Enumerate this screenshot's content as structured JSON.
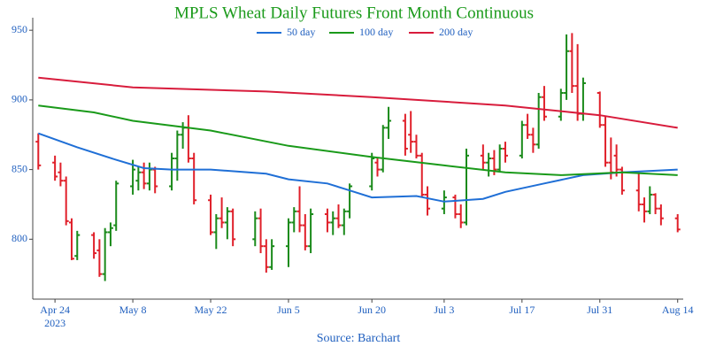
{
  "chart_data": {
    "type": "ohlc",
    "title": "MPLS Wheat Daily Futures Front Month Continuous",
    "source": "Source: Barchart",
    "up_color": "#1a8a1a",
    "down_color": "#e0202a",
    "x": [
      "2023-04-21",
      "2023-04-24",
      "2023-04-25",
      "2023-04-26",
      "2023-04-27",
      "2023-04-28",
      "2023-05-01",
      "2023-05-02",
      "2023-05-03",
      "2023-05-04",
      "2023-05-05",
      "2023-05-08",
      "2023-05-09",
      "2023-05-10",
      "2023-05-11",
      "2023-05-12",
      "2023-05-15",
      "2023-05-16",
      "2023-05-17",
      "2023-05-18",
      "2023-05-19",
      "2023-05-22",
      "2023-05-23",
      "2023-05-24",
      "2023-05-25",
      "2023-05-26",
      "2023-05-30",
      "2023-05-31",
      "2023-06-01",
      "2023-06-02",
      "2023-06-05",
      "2023-06-06",
      "2023-06-07",
      "2023-06-08",
      "2023-06-09",
      "2023-06-12",
      "2023-06-13",
      "2023-06-14",
      "2023-06-15",
      "2023-06-16",
      "2023-06-20",
      "2023-06-21",
      "2023-06-22",
      "2023-06-23",
      "2023-06-26",
      "2023-06-27",
      "2023-06-28",
      "2023-06-29",
      "2023-06-30",
      "2023-07-03",
      "2023-07-05",
      "2023-07-06",
      "2023-07-07",
      "2023-07-10",
      "2023-07-11",
      "2023-07-12",
      "2023-07-13",
      "2023-07-14",
      "2023-07-17",
      "2023-07-18",
      "2023-07-19",
      "2023-07-20",
      "2023-07-21",
      "2023-07-24",
      "2023-07-25",
      "2023-07-26",
      "2023-07-27",
      "2023-07-28",
      "2023-07-31",
      "2023-08-01",
      "2023-08-02",
      "2023-08-03",
      "2023-08-04",
      "2023-08-07",
      "2023-08-08",
      "2023-08-09",
      "2023-08-10",
      "2023-08-11",
      "2023-08-14"
    ],
    "open": [
      870,
      855,
      848,
      842,
      812,
      788,
      803,
      792,
      775,
      805,
      810,
      838,
      842,
      848,
      840,
      850,
      838,
      858,
      875,
      880,
      858,
      828,
      805,
      815,
      812,
      820,
      800,
      815,
      795,
      780,
      795,
      812,
      820,
      810,
      795,
      818,
      812,
      815,
      810,
      820,
      838,
      855,
      850,
      880,
      885,
      875,
      870,
      860,
      832,
      822,
      830,
      818,
      812,
      860,
      855,
      858,
      850,
      865,
      860,
      882,
      875,
      868,
      902,
      888,
      905,
      935,
      910,
      890,
      905,
      882,
      855,
      860,
      850,
      835,
      825,
      820,
      832,
      822,
      815
    ],
    "high": [
      876,
      860,
      855,
      845,
      815,
      806,
      805,
      800,
      808,
      812,
      842,
      857,
      852,
      855,
      855,
      852,
      862,
      878,
      884,
      889,
      862,
      832,
      818,
      830,
      823,
      822,
      820,
      822,
      800,
      800,
      815,
      823,
      838,
      818,
      822,
      822,
      820,
      825,
      822,
      840,
      862,
      858,
      882,
      895,
      890,
      892,
      875,
      862,
      838,
      835,
      832,
      825,
      865,
      868,
      862,
      864,
      868,
      870,
      885,
      890,
      880,
      905,
      910,
      908,
      947,
      948,
      940,
      916,
      906,
      888,
      873,
      868,
      852,
      848,
      830,
      838,
      833,
      825,
      818
    ],
    "low": [
      850,
      842,
      838,
      810,
      785,
      785,
      786,
      773,
      770,
      795,
      806,
      832,
      835,
      836,
      835,
      833,
      835,
      842,
      865,
      855,
      825,
      803,
      793,
      808,
      800,
      795,
      795,
      790,
      776,
      778,
      780,
      805,
      805,
      792,
      790,
      805,
      803,
      808,
      803,
      815,
      835,
      845,
      848,
      872,
      860,
      862,
      858,
      830,
      817,
      818,
      815,
      808,
      810,
      850,
      845,
      846,
      848,
      855,
      858,
      872,
      862,
      865,
      885,
      885,
      900,
      905,
      885,
      885,
      880,
      852,
      843,
      845,
      832,
      820,
      812,
      818,
      818,
      810,
      805
    ],
    "close": [
      853,
      845,
      842,
      813,
      786,
      803,
      790,
      775,
      805,
      808,
      840,
      850,
      848,
      840,
      850,
      838,
      858,
      875,
      880,
      858,
      828,
      805,
      815,
      812,
      820,
      800,
      815,
      795,
      780,
      795,
      812,
      820,
      810,
      795,
      818,
      812,
      815,
      810,
      820,
      838,
      858,
      850,
      880,
      885,
      865,
      870,
      860,
      832,
      822,
      830,
      818,
      812,
      860,
      855,
      858,
      850,
      865,
      860,
      882,
      875,
      868,
      902,
      888,
      905,
      935,
      910,
      890,
      912,
      882,
      855,
      848,
      850,
      835,
      825,
      820,
      832,
      822,
      815,
      807
    ],
    "moving_averages": [
      {
        "name": "50 day",
        "color": "#1f6fd6",
        "x": [
          "2023-04-21",
          "2023-04-28",
          "2023-05-05",
          "2023-05-10",
          "2023-05-15",
          "2023-05-22",
          "2023-06-01",
          "2023-06-05",
          "2023-06-12",
          "2023-06-16",
          "2023-06-20",
          "2023-06-28",
          "2023-07-03",
          "2023-07-10",
          "2023-07-14",
          "2023-07-21",
          "2023-07-28",
          "2023-08-04",
          "2023-08-14"
        ],
        "values": [
          876,
          866,
          857,
          851,
          850,
          850,
          847,
          843,
          840,
          835,
          830,
          831,
          827,
          829,
          834,
          840,
          846,
          848,
          850
        ]
      },
      {
        "name": "100 day",
        "color": "#1a9a1a",
        "x": [
          "2023-04-21",
          "2023-05-01",
          "2023-05-08",
          "2023-05-22",
          "2023-06-05",
          "2023-06-20",
          "2023-07-03",
          "2023-07-14",
          "2023-07-24",
          "2023-08-04",
          "2023-08-14"
        ],
        "values": [
          896,
          891,
          885,
          878,
          867,
          859,
          853,
          848,
          846,
          848,
          846
        ]
      },
      {
        "name": "200 day",
        "color": "#d81c3c",
        "x": [
          "2023-04-21",
          "2023-05-08",
          "2023-06-01",
          "2023-06-20",
          "2023-07-14",
          "2023-07-31",
          "2023-08-14"
        ],
        "values": [
          916,
          909,
          906,
          902,
          896,
          889,
          880
        ]
      }
    ],
    "xlim": [
      "2023-04-20",
      "2023-08-15"
    ],
    "ylim": [
      757,
      959
    ],
    "xticks": [
      {
        "value": "2023-04-24",
        "label": "Apr 24\n2023"
      },
      {
        "value": "2023-05-08",
        "label": "May 8"
      },
      {
        "value": "2023-05-22",
        "label": "May 22"
      },
      {
        "value": "2023-06-05",
        "label": "Jun 5"
      },
      {
        "value": "2023-06-20",
        "label": "Jun 20"
      },
      {
        "value": "2023-07-03",
        "label": "Jul 3"
      },
      {
        "value": "2023-07-17",
        "label": "Jul 17"
      },
      {
        "value": "2023-07-31",
        "label": "Jul 31"
      },
      {
        "value": "2023-08-14",
        "label": "Aug 14"
      }
    ],
    "yticks": [
      800,
      850,
      900,
      950
    ],
    "grid": false
  }
}
